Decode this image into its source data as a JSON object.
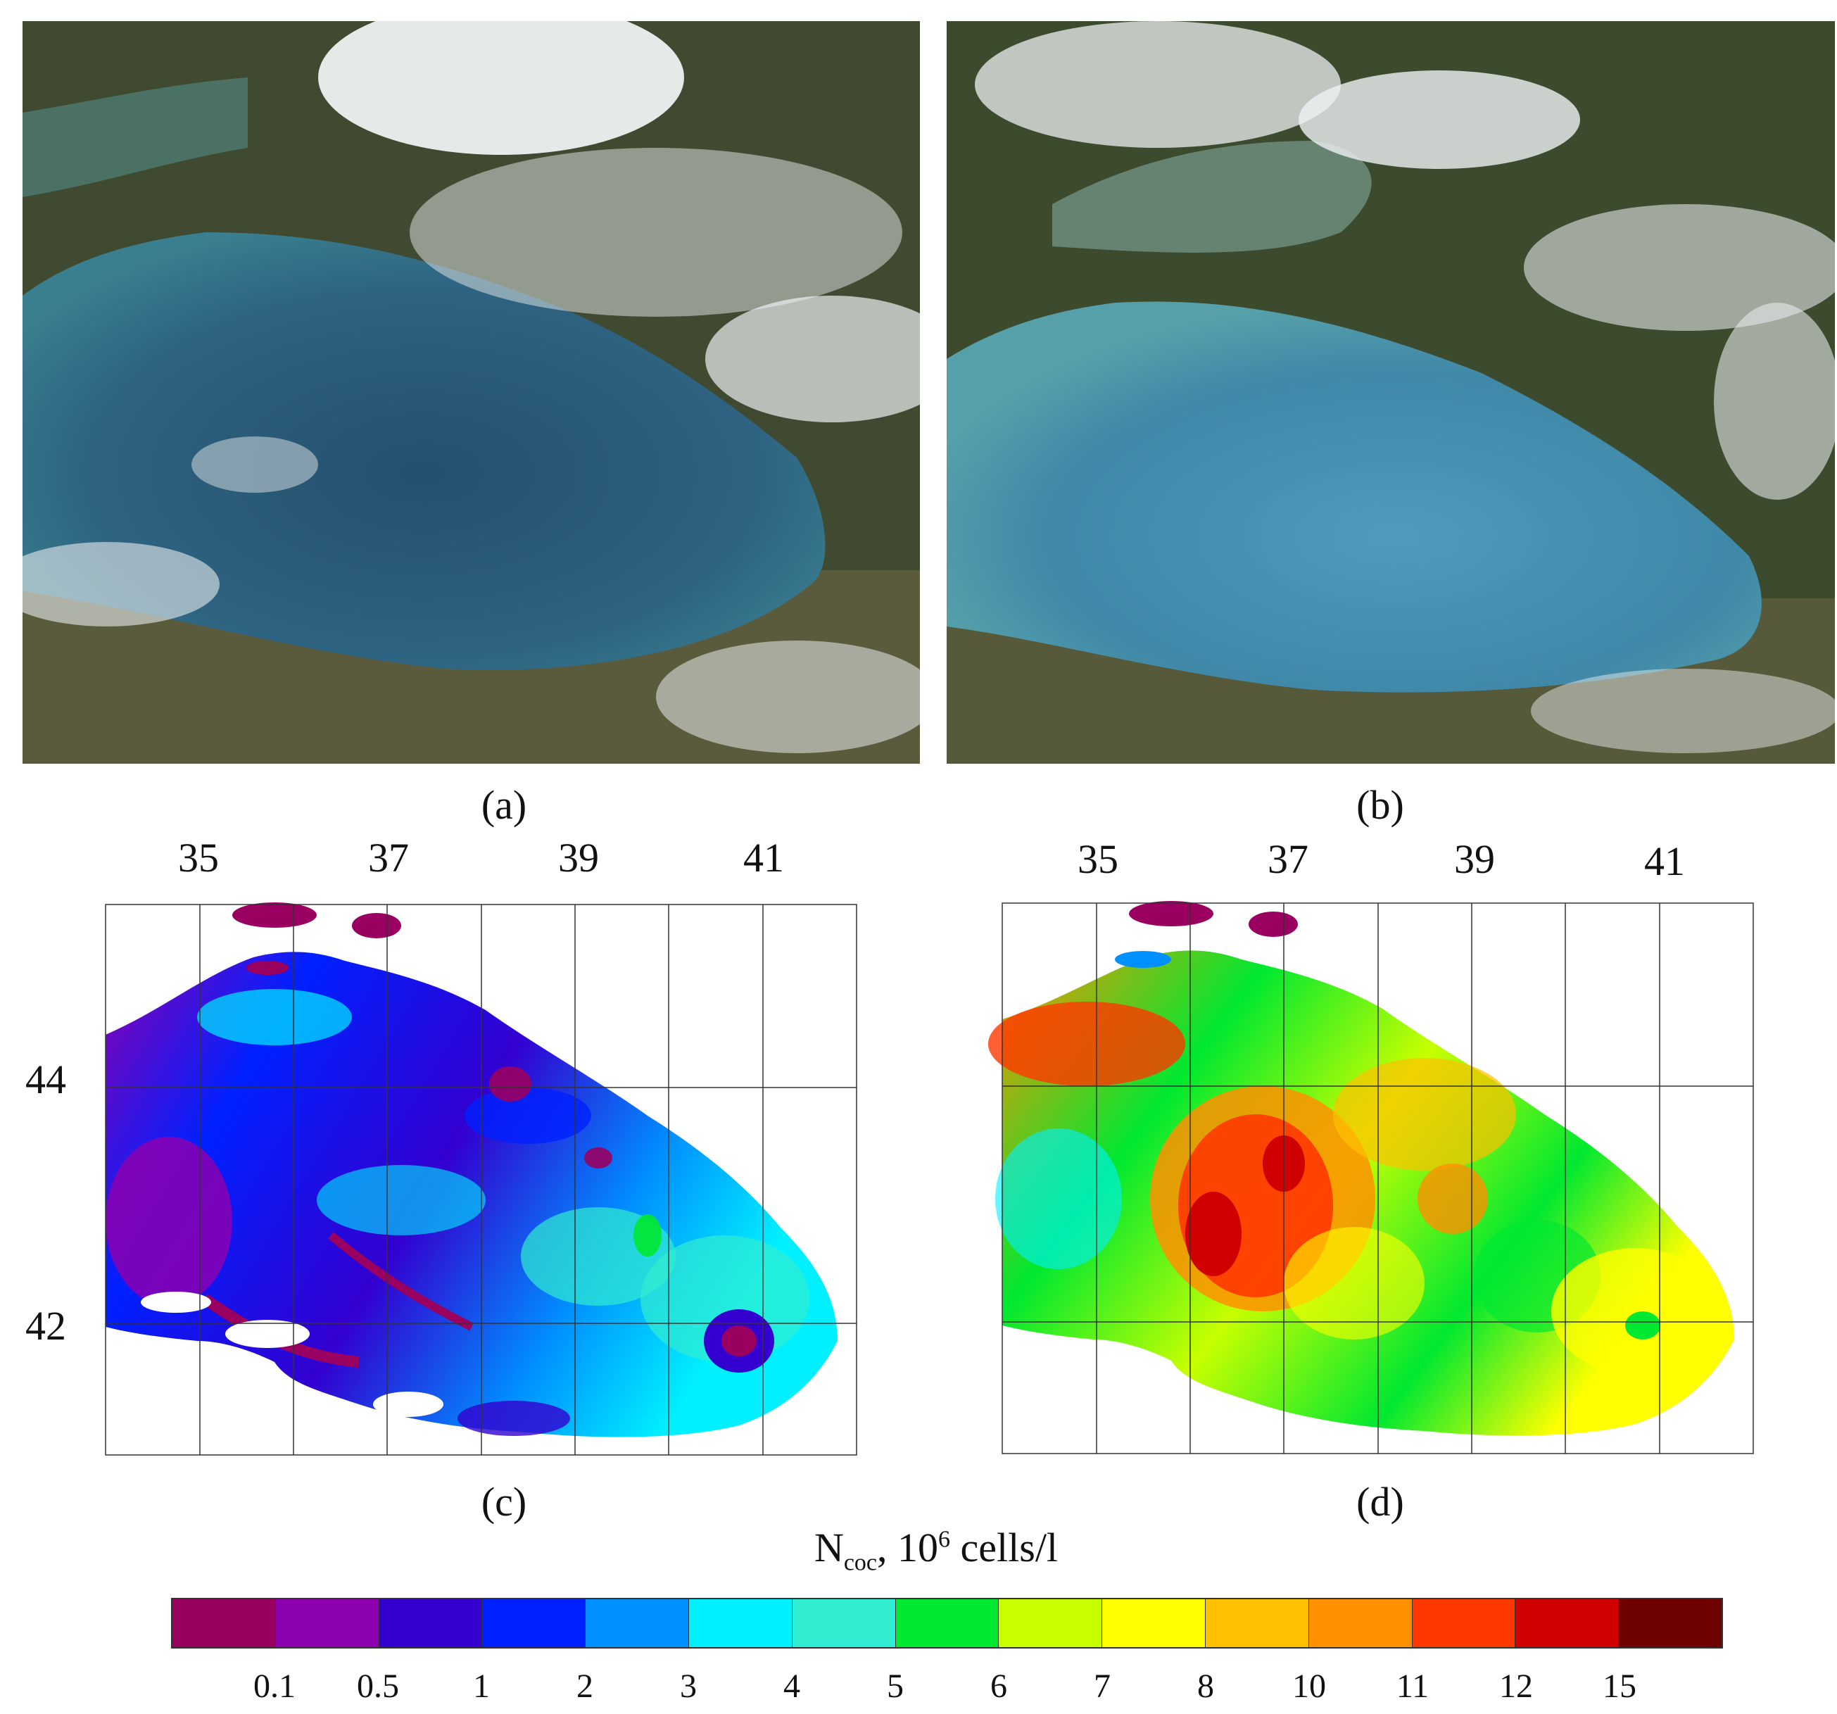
{
  "panels": {
    "a": "(a)",
    "b": "(b)",
    "c": "(c)",
    "d": "(d)"
  },
  "longitude_ticks": [
    "35",
    "37",
    "39",
    "41"
  ],
  "latitude_ticks": [
    "44",
    "42"
  ],
  "colorbar": {
    "title_main": "N",
    "title_sub": "coc",
    "title_mid": ", 10",
    "title_sup": "6",
    "title_unit": " cells/l",
    "colors": [
      "#9a0060",
      "#8c00b0",
      "#3300d0",
      "#0020ff",
      "#0090ff",
      "#00f0ff",
      "#30ecd0",
      "#00e830",
      "#c8ff00",
      "#ffff00",
      "#ffc000",
      "#ff9000",
      "#ff3800",
      "#d00000",
      "#700000"
    ],
    "tick_labels": [
      "0.1",
      "0.5",
      "1",
      "2",
      "3",
      "4",
      "5",
      "6",
      "7",
      "8",
      "10",
      "11",
      "12",
      "15"
    ]
  },
  "colors": {
    "sea_dark": "#1f4a66",
    "sea_light": "#3f8aa6",
    "land": "#3d4a2e",
    "cloud": "#eef1f2"
  }
}
